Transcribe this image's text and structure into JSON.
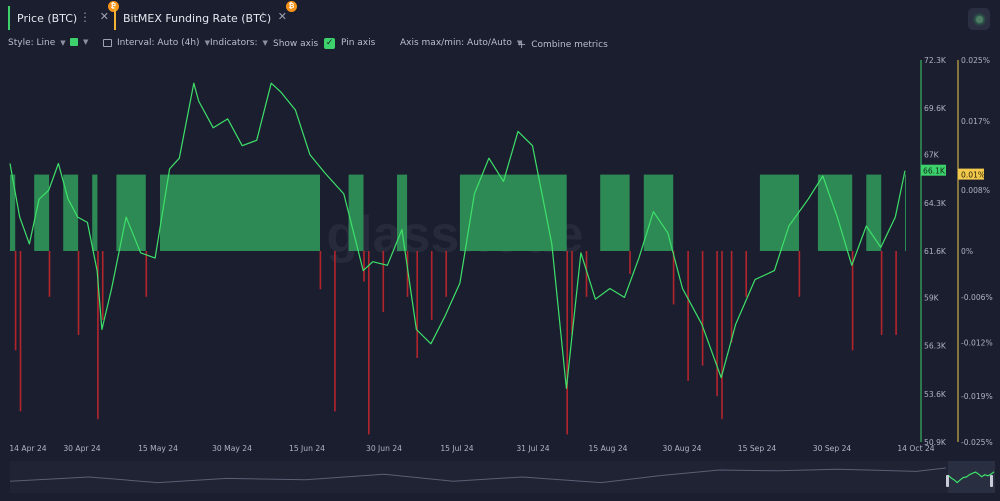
{
  "tabs": [
    {
      "label": "Price (BTC)",
      "badge": "₿",
      "color": "#3dd16b"
    },
    {
      "label": "BitMEX Funding Rate (BTC)",
      "badge": "₿",
      "color": "#f2b233"
    }
  ],
  "toolbar": {
    "style": "Style: Line",
    "interval": "Interval: Auto (4h)",
    "indicators": "Indicators:",
    "show_axis": "Show axis",
    "pin_axis": "Pin axis",
    "axis_minmax": "Axis max/min: Auto/Auto",
    "combine": "Combine metrics"
  },
  "chart_data": {
    "type": "line+bar",
    "price_axis": {
      "ticks": [
        "72.3K",
        "69.6K",
        "67K",
        "64.3K",
        "61.6K",
        "59K",
        "56.3K",
        "53.6K",
        "50.9K"
      ],
      "values": [
        72300,
        69600,
        67000,
        64300,
        61600,
        59000,
        56300,
        53600,
        50900
      ],
      "ylim": [
        50900,
        72300
      ],
      "current_label": "66.1K",
      "current_value": 66100,
      "color": "#3dd16b"
    },
    "funding_axis": {
      "ticks": [
        "0.025%",
        "0.017%",
        "0.008%",
        "0%",
        "-0.006%",
        "-0.012%",
        "-0.019%",
        "-0.025%"
      ],
      "values": [
        0.025,
        0.017,
        0.008,
        0,
        -0.006,
        -0.012,
        -0.019,
        -0.025
      ],
      "ylim": [
        -0.025,
        0.025
      ],
      "current_label": "0.01%",
      "current_value": 0.01,
      "color": "#f2c94c"
    },
    "x_ticks": [
      "14 Apr 24",
      "30 Apr 24",
      "15 May 24",
      "30 May 24",
      "15 Jun 24",
      "30 Jun 24",
      "15 Jul 24",
      "31 Jul 24",
      "15 Aug 24",
      "30 Aug 24",
      "15 Sep 24",
      "30 Sep 24",
      "14 Oct 24"
    ],
    "x_range": [
      "2024-04-12",
      "2024-10-14"
    ],
    "series": [
      {
        "name": "Price (BTC)",
        "kind": "line",
        "x": [
          "2024-04-12",
          "2024-04-14",
          "2024-04-16",
          "2024-04-18",
          "2024-04-20",
          "2024-04-22",
          "2024-04-24",
          "2024-04-26",
          "2024-04-28",
          "2024-04-30",
          "2024-05-01",
          "2024-05-03",
          "2024-05-06",
          "2024-05-09",
          "2024-05-12",
          "2024-05-15",
          "2024-05-17",
          "2024-05-20",
          "2024-05-21",
          "2024-05-24",
          "2024-05-27",
          "2024-05-30",
          "2024-06-02",
          "2024-06-05",
          "2024-06-07",
          "2024-06-10",
          "2024-06-13",
          "2024-06-16",
          "2024-06-20",
          "2024-06-24",
          "2024-06-26",
          "2024-06-29",
          "2024-07-02",
          "2024-07-05",
          "2024-07-08",
          "2024-07-11",
          "2024-07-14",
          "2024-07-17",
          "2024-07-20",
          "2024-07-23",
          "2024-07-26",
          "2024-07-29",
          "2024-08-02",
          "2024-08-05",
          "2024-08-08",
          "2024-08-11",
          "2024-08-14",
          "2024-08-17",
          "2024-08-20",
          "2024-08-23",
          "2024-08-26",
          "2024-08-29",
          "2024-09-02",
          "2024-09-06",
          "2024-09-09",
          "2024-09-13",
          "2024-09-17",
          "2024-09-20",
          "2024-09-24",
          "2024-09-27",
          "2024-09-30",
          "2024-10-03",
          "2024-10-06",
          "2024-10-09",
          "2024-10-12",
          "2024-10-14"
        ],
        "y": [
          66500,
          63500,
          62000,
          64500,
          65000,
          66500,
          64500,
          63500,
          63200,
          60500,
          57200,
          59500,
          63500,
          61500,
          61200,
          66200,
          66800,
          71000,
          70000,
          68500,
          69000,
          67500,
          67800,
          71000,
          70500,
          69500,
          67000,
          66000,
          64800,
          60500,
          61000,
          60800,
          62800,
          57200,
          56400,
          58000,
          59800,
          64800,
          66800,
          65500,
          68300,
          67500,
          62000,
          53900,
          61500,
          58900,
          59500,
          59000,
          61200,
          63800,
          62600,
          59500,
          57500,
          54500,
          57500,
          60000,
          60500,
          63000,
          64500,
          65800,
          63500,
          60800,
          63000,
          61800,
          63500,
          66100
        ]
      },
      {
        "name": "BitMEX Funding Rate (BTC)",
        "kind": "bar",
        "x": [
          "2024-04-12",
          "2024-04-13",
          "2024-04-14",
          "2024-04-17",
          "2024-04-20",
          "2024-04-23",
          "2024-04-26",
          "2024-04-29",
          "2024-04-30",
          "2024-05-01",
          "2024-05-04",
          "2024-05-07",
          "2024-05-10",
          "2024-05-13",
          "2024-05-16",
          "2024-05-20",
          "2024-05-24",
          "2024-05-28",
          "2024-06-01",
          "2024-06-05",
          "2024-06-09",
          "2024-06-13",
          "2024-06-15",
          "2024-06-18",
          "2024-06-21",
          "2024-06-24",
          "2024-06-25",
          "2024-06-28",
          "2024-07-01",
          "2024-07-03",
          "2024-07-05",
          "2024-07-08",
          "2024-07-11",
          "2024-07-14",
          "2024-07-17",
          "2024-07-21",
          "2024-07-25",
          "2024-07-29",
          "2024-08-02",
          "2024-08-05",
          "2024-08-06",
          "2024-08-09",
          "2024-08-12",
          "2024-08-15",
          "2024-08-18",
          "2024-08-21",
          "2024-08-24",
          "2024-08-27",
          "2024-08-30",
          "2024-09-02",
          "2024-09-05",
          "2024-09-06",
          "2024-09-08",
          "2024-09-11",
          "2024-09-14",
          "2024-09-18",
          "2024-09-22",
          "2024-09-26",
          "2024-09-30",
          "2024-10-03",
          "2024-10-06",
          "2024-10-09",
          "2024-10-12",
          "2024-10-14"
        ],
        "values": [
          0.01,
          -0.013,
          -0.021,
          0.01,
          -0.006,
          0.01,
          -0.011,
          0.01,
          -0.022,
          -0.009,
          0.01,
          0.01,
          -0.006,
          0.01,
          0.01,
          0.01,
          0.01,
          0.01,
          0.01,
          0.01,
          0.01,
          0.01,
          -0.005,
          -0.021,
          0.01,
          -0.004,
          -0.024,
          -0.008,
          0.01,
          -0.006,
          -0.014,
          -0.009,
          -0.006,
          0.01,
          0.01,
          0.01,
          0.01,
          0.01,
          0.01,
          -0.024,
          -0.011,
          -0.006,
          0.01,
          0.01,
          -0.003,
          0.01,
          0.01,
          -0.007,
          -0.017,
          -0.015,
          -0.019,
          -0.022,
          -0.012,
          -0.006,
          0.01,
          0.01,
          -0.006,
          0.01,
          0.01,
          -0.013,
          0.01,
          -0.011,
          -0.011,
          0.01
        ]
      }
    ],
    "grid": false,
    "legend": "tabs at top-left",
    "watermark": "glassnode"
  }
}
